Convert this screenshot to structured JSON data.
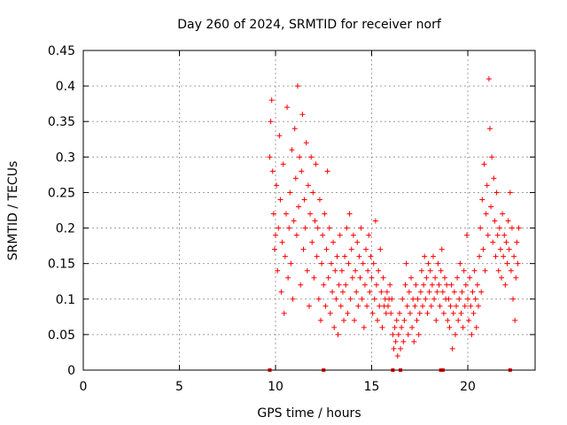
{
  "chart_data": {
    "type": "scatter",
    "title": "Day 260 of 2024, SRMTID for receiver norf",
    "xlabel": "GPS time / hours",
    "ylabel": "SRMTID / TECUs",
    "xlim": [
      0,
      23.5
    ],
    "ylim": [
      0,
      0.45
    ],
    "xticks": [
      "0",
      "5",
      "10",
      "15",
      "20"
    ],
    "xtick_values": [
      0,
      5,
      10,
      15,
      20
    ],
    "yticks": [
      "0",
      "0.05",
      "0.1",
      "0.15",
      "0.2",
      "0.25",
      "0.3",
      "0.35",
      "0.4",
      "0.45"
    ],
    "ytick_values": [
      0,
      0.05,
      0.1,
      0.15,
      0.2,
      0.25,
      0.3,
      0.35,
      0.4,
      0.45
    ],
    "grid": true,
    "marker": "+",
    "color": "#ff0000",
    "series": [
      {
        "name": "SRMTID",
        "points": [
          [
            9.7,
            0.3
          ],
          [
            9.75,
            0.35
          ],
          [
            9.8,
            0.38
          ],
          [
            9.85,
            0.28
          ],
          [
            9.9,
            0.22
          ],
          [
            9.95,
            0.17
          ],
          [
            10.0,
            0.19
          ],
          [
            10.05,
            0.26
          ],
          [
            10.1,
            0.14
          ],
          [
            10.15,
            0.2
          ],
          [
            10.2,
            0.33
          ],
          [
            10.25,
            0.24
          ],
          [
            10.3,
            0.11
          ],
          [
            10.35,
            0.18
          ],
          [
            10.4,
            0.29
          ],
          [
            10.45,
            0.08
          ],
          [
            10.5,
            0.16
          ],
          [
            10.55,
            0.22
          ],
          [
            10.6,
            0.37
          ],
          [
            10.65,
            0.13
          ],
          [
            10.7,
            0.2
          ],
          [
            10.75,
            0.25
          ],
          [
            10.8,
            0.15
          ],
          [
            10.85,
            0.31
          ],
          [
            10.9,
            0.1
          ],
          [
            10.95,
            0.21
          ],
          [
            11.0,
            0.34
          ],
          [
            11.05,
            0.27
          ],
          [
            11.1,
            0.19
          ],
          [
            11.15,
            0.4
          ],
          [
            11.2,
            0.23
          ],
          [
            11.25,
            0.3
          ],
          [
            11.3,
            0.12
          ],
          [
            11.35,
            0.28
          ],
          [
            11.4,
            0.36
          ],
          [
            11.45,
            0.17
          ],
          [
            11.5,
            0.24
          ],
          [
            11.55,
            0.2
          ],
          [
            11.6,
            0.32
          ],
          [
            11.65,
            0.14
          ],
          [
            11.7,
            0.26
          ],
          [
            11.75,
            0.09
          ],
          [
            11.8,
            0.22
          ],
          [
            11.85,
            0.3
          ],
          [
            11.9,
            0.18
          ],
          [
            11.95,
            0.25
          ],
          [
            12.0,
            0.13
          ],
          [
            12.05,
            0.21
          ],
          [
            12.1,
            0.29
          ],
          [
            12.15,
            0.16
          ],
          [
            12.2,
            0.2
          ],
          [
            12.25,
            0.1
          ],
          [
            12.3,
            0.24
          ],
          [
            12.35,
            0.07
          ],
          [
            12.4,
            0.15
          ],
          [
            12.45,
            0.19
          ],
          [
            12.5,
            0.12
          ],
          [
            12.55,
            0.22
          ],
          [
            12.6,
            0.09
          ],
          [
            12.65,
            0.17
          ],
          [
            12.7,
            0.28
          ],
          [
            12.75,
            0.13
          ],
          [
            12.8,
            0.2
          ],
          [
            12.85,
            0.08
          ],
          [
            12.9,
            0.15
          ],
          [
            12.95,
            0.11
          ],
          [
            13.0,
            0.18
          ],
          [
            13.05,
            0.06
          ],
          [
            13.1,
            0.14
          ],
          [
            13.15,
            0.1
          ],
          [
            13.2,
            0.16
          ],
          [
            13.25,
            0.05
          ],
          [
            13.3,
            0.12
          ],
          [
            13.35,
            0.19
          ],
          [
            13.4,
            0.09
          ],
          [
            13.45,
            0.14
          ],
          [
            13.5,
            0.11
          ],
          [
            13.55,
            0.07
          ],
          [
            13.6,
            0.16
          ],
          [
            13.65,
            0.12
          ],
          [
            13.7,
            0.2
          ],
          [
            13.75,
            0.08
          ],
          [
            13.8,
            0.15
          ],
          [
            13.85,
            0.22
          ],
          [
            13.9,
            0.1
          ],
          [
            13.95,
            0.17
          ],
          [
            14.0,
            0.13
          ],
          [
            14.05,
            0.19
          ],
          [
            14.1,
            0.07
          ],
          [
            14.15,
            0.14
          ],
          [
            14.2,
            0.11
          ],
          [
            14.25,
            0.18
          ],
          [
            14.3,
            0.09
          ],
          [
            14.35,
            0.16
          ],
          [
            14.4,
            0.13
          ],
          [
            14.45,
            0.2
          ],
          [
            14.5,
            0.1
          ],
          [
            14.55,
            0.15
          ],
          [
            14.6,
            0.06
          ],
          [
            14.65,
            0.12
          ],
          [
            14.7,
            0.17
          ],
          [
            14.75,
            0.09
          ],
          [
            14.8,
            0.14
          ],
          [
            14.85,
            0.19
          ],
          [
            14.9,
            0.11
          ],
          [
            14.95,
            0.16
          ],
          [
            15.0,
            0.13
          ],
          [
            15.05,
            0.08
          ],
          [
            15.1,
            0.15
          ],
          [
            15.15,
            0.1
          ],
          [
            15.2,
            0.21
          ],
          [
            15.25,
            0.12
          ],
          [
            15.3,
            0.07
          ],
          [
            15.35,
            0.14
          ],
          [
            15.4,
            0.09
          ],
          [
            15.45,
            0.17
          ],
          [
            15.5,
            0.11
          ],
          [
            15.55,
            0.06
          ],
          [
            15.6,
            0.13
          ],
          [
            15.65,
            0.09
          ],
          [
            15.7,
            0.1
          ],
          [
            15.75,
            0.08
          ],
          [
            15.8,
            0.11
          ],
          [
            15.85,
            0.09
          ],
          [
            15.9,
            0.1
          ],
          [
            15.95,
            0.12
          ],
          [
            16.0,
            0.08
          ],
          [
            16.05,
            0.1
          ],
          [
            16.1,
            0.05
          ],
          [
            16.15,
            0.03
          ],
          [
            16.2,
            0.06
          ],
          [
            16.25,
            0.04
          ],
          [
            16.3,
            0.07
          ],
          [
            16.35,
            0.02
          ],
          [
            16.4,
            0.05
          ],
          [
            16.45,
            0.08
          ],
          [
            16.5,
            0.03
          ],
          [
            16.55,
            0.06
          ],
          [
            16.6,
            0.1
          ],
          [
            16.65,
            0.04
          ],
          [
            16.7,
            0.07
          ],
          [
            16.75,
            0.12
          ],
          [
            16.8,
            0.15
          ],
          [
            16.85,
            0.09
          ],
          [
            16.9,
            0.05
          ],
          [
            16.95,
            0.11
          ],
          [
            17.0,
            0.08
          ],
          [
            17.05,
            0.13
          ],
          [
            17.1,
            0.06
          ],
          [
            17.15,
            0.1
          ],
          [
            17.2,
            0.04
          ],
          [
            17.25,
            0.09
          ],
          [
            17.3,
            0.12
          ],
          [
            17.35,
            0.07
          ],
          [
            17.4,
            0.1
          ],
          [
            17.45,
            0.05
          ],
          [
            17.5,
            0.08
          ],
          [
            17.55,
            0.11
          ],
          [
            17.6,
            0.14
          ],
          [
            17.65,
            0.09
          ],
          [
            17.7,
            0.12
          ],
          [
            17.75,
            0.16
          ],
          [
            17.8,
            0.1
          ],
          [
            17.85,
            0.13
          ],
          [
            17.9,
            0.08
          ],
          [
            17.95,
            0.15
          ],
          [
            18.0,
            0.11
          ],
          [
            18.05,
            0.14
          ],
          [
            18.1,
            0.09
          ],
          [
            18.15,
            0.12
          ],
          [
            18.2,
            0.16
          ],
          [
            18.25,
            0.1
          ],
          [
            18.3,
            0.13
          ],
          [
            18.35,
            0.07
          ],
          [
            18.4,
            0.11
          ],
          [
            18.45,
            0.15
          ],
          [
            18.5,
            0.12
          ],
          [
            18.55,
            0.09
          ],
          [
            18.6,
            0.14
          ],
          [
            18.65,
            0.17
          ],
          [
            18.7,
            0.11
          ],
          [
            18.75,
            0.08
          ],
          [
            18.8,
            0.13
          ],
          [
            18.85,
            0.1
          ],
          [
            18.9,
            0.12
          ],
          [
            18.95,
            0.07
          ],
          [
            19.0,
            0.1
          ],
          [
            19.05,
            0.06
          ],
          [
            19.1,
            0.09
          ],
          [
            19.15,
            0.12
          ],
          [
            19.2,
            0.03
          ],
          [
            19.25,
            0.08
          ],
          [
            19.3,
            0.11
          ],
          [
            19.35,
            0.05
          ],
          [
            19.4,
            0.09
          ],
          [
            19.45,
            0.13
          ],
          [
            19.5,
            0.07
          ],
          [
            19.55,
            0.1
          ],
          [
            19.6,
            0.15
          ],
          [
            19.65,
            0.08
          ],
          [
            19.7,
            0.11
          ],
          [
            19.75,
            0.06
          ],
          [
            19.8,
            0.14
          ],
          [
            19.85,
            0.09
          ],
          [
            19.9,
            0.12
          ],
          [
            19.95,
            0.19
          ],
          [
            20.0,
            0.1
          ],
          [
            20.05,
            0.07
          ],
          [
            20.1,
            0.13
          ],
          [
            20.15,
            0.09
          ],
          [
            20.2,
            0.05
          ],
          [
            20.25,
            0.11
          ],
          [
            20.3,
            0.08
          ],
          [
            20.35,
            0.14
          ],
          [
            20.4,
            0.1
          ],
          [
            20.45,
            0.06
          ],
          [
            20.5,
            0.12
          ],
          [
            20.55,
            0.09
          ],
          [
            20.6,
            0.16
          ],
          [
            20.65,
            0.2
          ],
          [
            20.7,
            0.11
          ],
          [
            20.75,
            0.24
          ],
          [
            20.8,
            0.17
          ],
          [
            20.85,
            0.29
          ],
          [
            20.9,
            0.14
          ],
          [
            20.95,
            0.22
          ],
          [
            21.0,
            0.26
          ],
          [
            21.05,
            0.19
          ],
          [
            21.1,
            0.41
          ],
          [
            21.15,
            0.34
          ],
          [
            21.2,
            0.23
          ],
          [
            21.25,
            0.3
          ],
          [
            21.3,
            0.18
          ],
          [
            21.35,
            0.27
          ],
          [
            21.4,
            0.21
          ],
          [
            21.45,
            0.16
          ],
          [
            21.5,
            0.25
          ],
          [
            21.55,
            0.19
          ],
          [
            21.6,
            0.14
          ],
          [
            21.65,
            0.2
          ],
          [
            21.7,
            0.17
          ],
          [
            21.75,
            0.13
          ],
          [
            21.8,
            0.22
          ],
          [
            21.85,
            0.16
          ],
          [
            21.9,
            0.19
          ],
          [
            21.95,
            0.12
          ],
          [
            22.0,
            0.18
          ],
          [
            22.05,
            0.15
          ],
          [
            22.1,
            0.21
          ],
          [
            22.15,
            0.17
          ],
          [
            22.2,
            0.25
          ],
          [
            22.25,
            0.14
          ],
          [
            22.3,
            0.2
          ],
          [
            22.35,
            0.1
          ],
          [
            22.4,
            0.16
          ],
          [
            22.45,
            0.07
          ],
          [
            22.5,
            0.13
          ],
          [
            22.55,
            0.18
          ],
          [
            22.6,
            0.15
          ],
          [
            22.65,
            0.2
          ]
        ]
      }
    ],
    "axis_markers": [
      9.7,
      12.5,
      16.1,
      16.5,
      18.6,
      18.7,
      22.2
    ]
  }
}
